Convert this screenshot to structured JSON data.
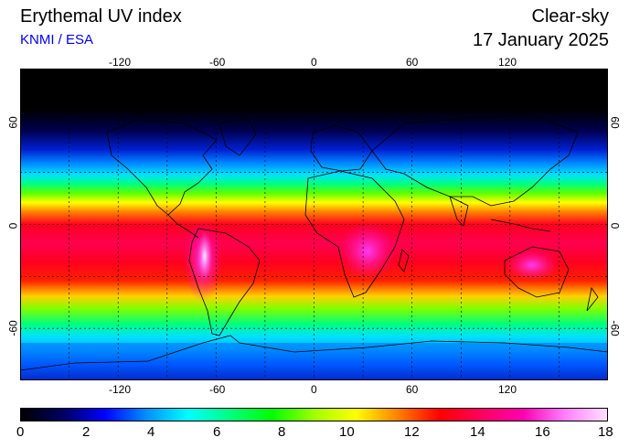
{
  "header": {
    "title": "Erythemal UV index",
    "source": "KNMI / ESA",
    "mode": "Clear-sky",
    "date": "17 January 2025"
  },
  "map": {
    "lon_ticks": [
      "-120",
      "-60",
      "0",
      "60",
      "120"
    ],
    "lon_values": [
      -120,
      -60,
      0,
      60,
      120
    ],
    "lat_ticks": [
      "60",
      "0",
      "-60"
    ],
    "lat_values": [
      60,
      0,
      -60
    ],
    "lon_range": [
      -180,
      180
    ],
    "lat_range": [
      -90,
      90
    ],
    "grid_lons": [
      -150,
      -120,
      -90,
      -60,
      -30,
      0,
      30,
      60,
      90,
      120,
      150
    ],
    "grid_lats": [
      60,
      30,
      0,
      -30,
      -60
    ]
  },
  "colorbar": {
    "labels": [
      "0",
      "2",
      "4",
      "6",
      "8",
      "10",
      "12",
      "14",
      "16",
      "18"
    ],
    "min": 0,
    "max": 18,
    "colors": [
      "#000000",
      "#000060",
      "#0000ff",
      "#0090ff",
      "#00ffff",
      "#00ff80",
      "#00ff00",
      "#a0ff00",
      "#ffff00",
      "#ff8000",
      "#ff0000",
      "#ff0060",
      "#ff00b0",
      "#ff80ff",
      "#ffe0ff"
    ]
  }
}
